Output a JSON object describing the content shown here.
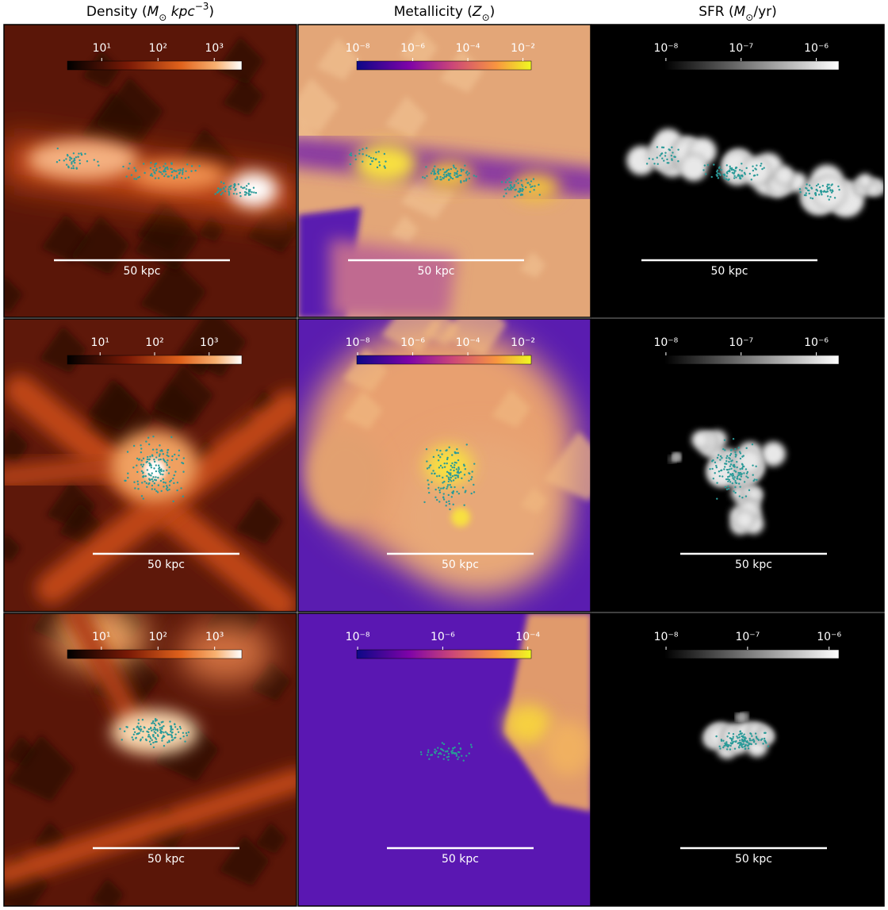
{
  "columns": [
    {
      "title": [
        {
          "text": "Density ("
        },
        {
          "text": "M",
          "italic": true
        },
        {
          "text": "⊙",
          "sub": true
        },
        {
          "text": " kpc",
          "italic": true
        },
        {
          "text": "−3",
          "sup": true
        },
        {
          "text": ")"
        }
      ]
    },
    {
      "title": [
        {
          "text": "Metallicity ("
        },
        {
          "text": "Z",
          "italic": true
        },
        {
          "text": "⊙",
          "sub": true
        },
        {
          "text": ")"
        }
      ]
    },
    {
      "title": [
        {
          "text": "SFR ("
        },
        {
          "text": "M",
          "italic": true
        },
        {
          "text": "⊙",
          "sub": true
        },
        {
          "text": "/yr)"
        }
      ]
    }
  ],
  "panels": [
    [
      {
        "colorbar": {
          "lim": [
            0.39,
            3.49
          ],
          "ticks": [
            {
              "value": 1,
              "label": "10¹"
            },
            {
              "value": 2,
              "label": "10²"
            },
            {
              "value": 3,
              "label": "10³"
            }
          ]
        },
        "scale_bar": "50 kpc"
      },
      {
        "colorbar": {
          "lim": [
            -8.03,
            -1.7
          ],
          "ticks": [
            {
              "value": -8,
              "label": "10⁻⁸"
            },
            {
              "value": -6,
              "label": "10⁻⁶"
            },
            {
              "value": -4,
              "label": "10⁻⁴"
            },
            {
              "value": -2,
              "label": "10⁻²"
            }
          ]
        },
        "scale_bar": "50 kpc"
      },
      {
        "colorbar": {
          "lim": [
            -8.02,
            -5.7
          ],
          "ticks": [
            {
              "value": -8,
              "label": "10⁻⁸"
            },
            {
              "value": -7,
              "label": "10⁻⁷"
            },
            {
              "value": -6,
              "label": "10⁻⁶"
            }
          ]
        },
        "scale_bar": "50 kpc"
      }
    ],
    [
      {
        "colorbar": {
          "lim": [
            0.4,
            3.6
          ],
          "ticks": [
            {
              "value": 1,
              "label": "10¹"
            },
            {
              "value": 2,
              "label": "10²"
            },
            {
              "value": 3,
              "label": "10³"
            }
          ]
        },
        "scale_bar": "50 kpc"
      },
      {
        "colorbar": {
          "lim": [
            -8.03,
            -1.7
          ],
          "ticks": [
            {
              "value": -8,
              "label": "10⁻⁸"
            },
            {
              "value": -6,
              "label": "10⁻⁶"
            },
            {
              "value": -4,
              "label": "10⁻⁴"
            },
            {
              "value": -2,
              "label": "10⁻²"
            }
          ]
        },
        "scale_bar": "50 kpc"
      },
      {
        "colorbar": {
          "lim": [
            -8.02,
            -5.7
          ],
          "ticks": [
            {
              "value": -8,
              "label": "10⁻⁸"
            },
            {
              "value": -7,
              "label": "10⁻⁷"
            },
            {
              "value": -6,
              "label": "10⁻⁶"
            }
          ]
        },
        "scale_bar": "50 kpc"
      }
    ],
    [
      {
        "colorbar": {
          "lim": [
            0.4,
            3.48
          ],
          "ticks": [
            {
              "value": 1,
              "label": "10¹"
            },
            {
              "value": 2,
              "label": "10²"
            },
            {
              "value": 3,
              "label": "10³"
            }
          ]
        },
        "scale_bar": "50 kpc"
      },
      {
        "colorbar": {
          "lim": [
            -8.02,
            -3.92
          ],
          "ticks": [
            {
              "value": -8,
              "label": "10⁻⁸"
            },
            {
              "value": -6,
              "label": "10⁻⁶"
            },
            {
              "value": -4,
              "label": "10⁻⁴"
            }
          ]
        },
        "scale_bar": "50 kpc"
      },
      {
        "colorbar": {
          "lim": [
            -8.02,
            -5.88
          ],
          "ticks": [
            {
              "value": -8,
              "label": "10⁻⁸"
            },
            {
              "value": -7,
              "label": "10⁻⁷"
            },
            {
              "value": -6,
              "label": "10⁻⁶"
            }
          ]
        },
        "scale_bar": "50 kpc"
      }
    ]
  ]
}
